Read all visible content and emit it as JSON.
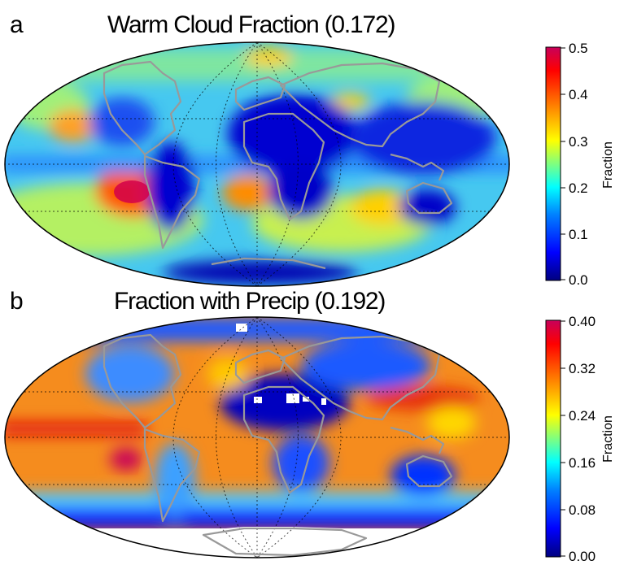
{
  "panels": [
    {
      "letter": "a",
      "title": "Warm Cloud Fraction (0.172)",
      "colorbar": {
        "label": "Fraction",
        "ticks": [
          "0.5",
          "0.4",
          "0.3",
          "0.2",
          "0.1",
          "0.0"
        ],
        "range": [
          0.0,
          0.5
        ]
      }
    },
    {
      "letter": "b",
      "title": "Fraction with Precip (0.192)",
      "colorbar": {
        "label": "Fraction",
        "ticks": [
          "0.40",
          "0.32",
          "0.24",
          "0.16",
          "0.08",
          "0.00"
        ],
        "range": [
          0.0,
          0.4
        ]
      }
    }
  ],
  "colormap": [
    "#00007f",
    "#0000ff",
    "#007fff",
    "#00ffff",
    "#7fff7f",
    "#ffff00",
    "#ff7f00",
    "#ff0000",
    "#c8005a"
  ],
  "map": {
    "projection": "Mollweide",
    "coastline_color": "#999999",
    "graticule": "dotted"
  }
}
